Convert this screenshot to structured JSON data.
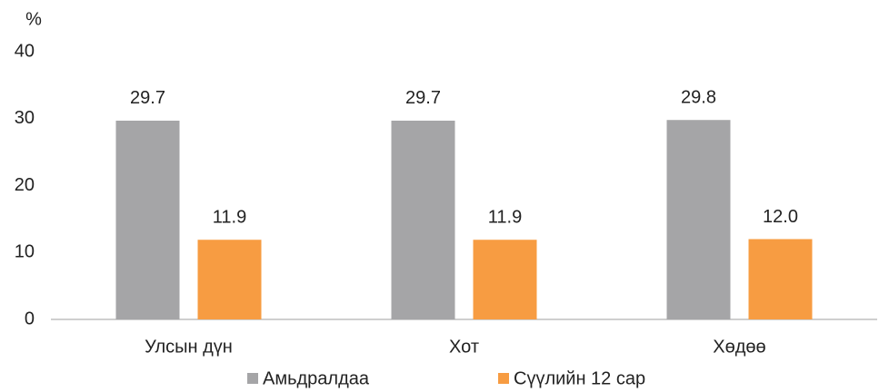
{
  "chart_data": {
    "type": "bar",
    "y_unit": "%",
    "categories": [
      "Улсын дүн",
      "Хот",
      "Хөдөө"
    ],
    "series": [
      {
        "name": "Амьдралдаа",
        "color": "#a5a5a7",
        "values": [
          29.7,
          29.7,
          29.8
        ],
        "value_labels": [
          "29.7",
          "29.7",
          "29.8"
        ]
      },
      {
        "name": "Сүүлийн 12 сар",
        "color": "#f79c42",
        "values": [
          11.9,
          11.9,
          12.0
        ],
        "value_labels": [
          "11.9",
          "11.9",
          "12.0"
        ]
      }
    ],
    "ylim": [
      0,
      40
    ],
    "yticks": [
      0,
      10,
      20,
      30,
      40
    ],
    "grid": false,
    "legend": "bottom"
  }
}
